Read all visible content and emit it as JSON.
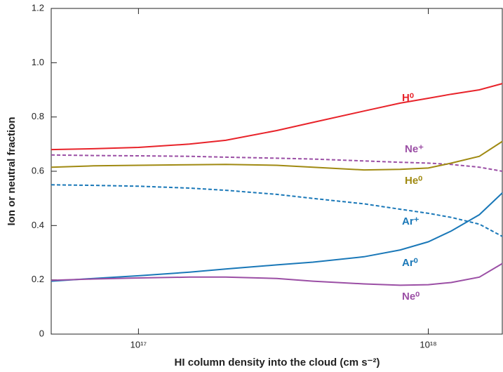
{
  "chart_data": {
    "type": "line",
    "xlabel": "HI column density into the cloud (cm s⁻²)",
    "ylabel": "Ion or neutral fraction",
    "xscale": "log",
    "xlim": [
      5e+16,
      1.8e+18
    ],
    "xticks": [
      {
        "value": 1e+17,
        "label": "10¹⁷"
      },
      {
        "value": 1e+18,
        "label": "10¹⁸"
      }
    ],
    "ylim": [
      0,
      1.2
    ],
    "yticks": [
      0,
      0.2,
      0.4,
      0.6,
      0.8,
      {
        "value": 1,
        "label": "1.0"
      },
      1.2
    ],
    "x": [
      5e+16,
      7e+16,
      1e+17,
      1.5e+17,
      2e+17,
      3e+17,
      4e+17,
      6e+17,
      8e+17,
      1e+18,
      1.2e+18,
      1.5e+18,
      1.8e+18
    ],
    "series": [
      {
        "name": "H⁰",
        "color": "#e8232a",
        "dashed": false,
        "values": [
          0.68,
          0.683,
          0.688,
          0.7,
          0.714,
          0.75,
          0.78,
          0.822,
          0.851,
          0.869,
          0.884,
          0.9,
          0.923
        ]
      },
      {
        "name": "Ne⁺",
        "color": "#9b4fa5",
        "dashed": true,
        "values": [
          0.66,
          0.658,
          0.657,
          0.655,
          0.652,
          0.648,
          0.645,
          0.638,
          0.633,
          0.63,
          0.625,
          0.615,
          0.6
        ]
      },
      {
        "name": "He⁰",
        "color": "#a08a12",
        "dashed": false,
        "values": [
          0.615,
          0.62,
          0.622,
          0.624,
          0.625,
          0.622,
          0.615,
          0.605,
          0.607,
          0.612,
          0.63,
          0.655,
          0.71
        ]
      },
      {
        "name": "Ar⁺",
        "color": "#1a78b8",
        "dashed": true,
        "values": [
          0.55,
          0.548,
          0.545,
          0.538,
          0.53,
          0.515,
          0.5,
          0.48,
          0.46,
          0.445,
          0.43,
          0.405,
          0.36
        ]
      },
      {
        "name": "Ar⁰",
        "color": "#1a78b8",
        "dashed": false,
        "values": [
          0.195,
          0.205,
          0.215,
          0.228,
          0.24,
          0.255,
          0.265,
          0.285,
          0.31,
          0.34,
          0.38,
          0.44,
          0.52
        ]
      },
      {
        "name": "Ne⁰",
        "color": "#9b4fa5",
        "dashed": false,
        "values": [
          0.198,
          0.203,
          0.207,
          0.21,
          0.21,
          0.205,
          0.195,
          0.185,
          0.18,
          0.182,
          0.19,
          0.21,
          0.26
        ]
      }
    ]
  }
}
